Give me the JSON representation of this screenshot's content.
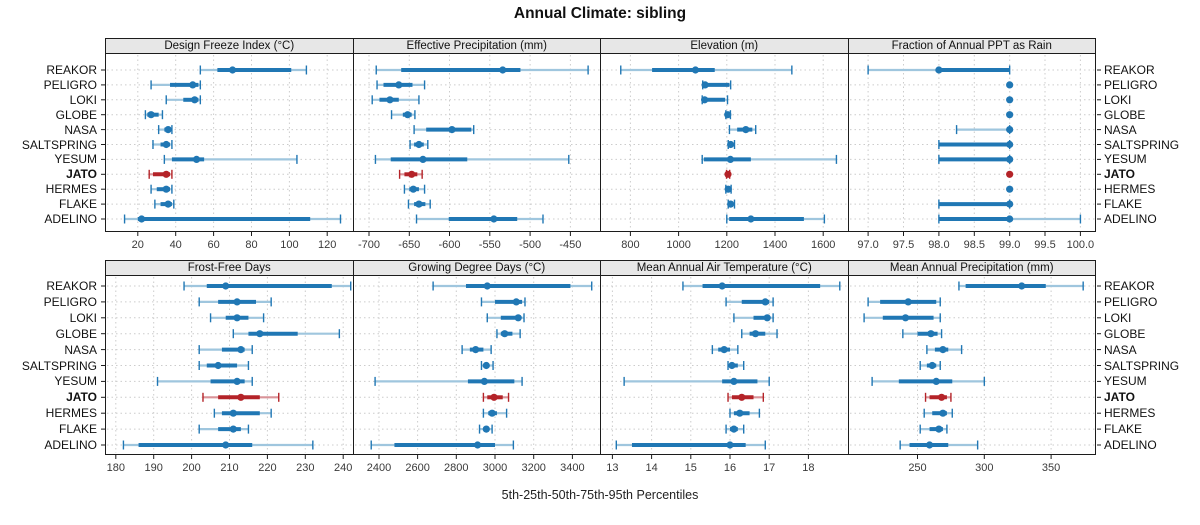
{
  "chart_data": {
    "type": "dotplot",
    "title": "Annual Climate: sibling",
    "caption": "5th-25th-50th-75th-95th Percentiles",
    "percentiles": [
      5,
      25,
      50,
      75,
      95
    ],
    "legend_position": "none",
    "grid": true,
    "sites": [
      "REAKOR",
      "PELIGRO",
      "LOKI",
      "GLOBE",
      "NASA",
      "SALTSPRING",
      "YESUM",
      "JATO",
      "HERMES",
      "FLAKE",
      "ADELINO"
    ],
    "highlight_site": "JATO",
    "colors": {
      "normal": "#2077b4",
      "normal_light": "#9fc6de",
      "highlight": "#b42328",
      "highlight_light": "#d99398",
      "grid": "#cccccc",
      "strip_bg": "#e7e7e7",
      "border": "#1c1c1c"
    },
    "panels": [
      {
        "title": "Design Freeze Index (°C)",
        "xlim": [
          3.2,
          133.6
        ],
        "ticks": [
          20,
          40,
          60,
          80,
          100,
          120
        ],
        "tick_labels": [
          "20",
          "40",
          "60",
          "80",
          "100",
          "120"
        ],
        "series": [
          [
            53,
            62,
            70,
            101,
            109
          ],
          [
            27,
            37,
            49,
            52,
            53
          ],
          [
            35,
            44,
            50,
            52,
            53
          ],
          [
            24,
            25,
            27,
            31,
            33
          ],
          [
            31,
            34,
            36,
            37,
            38
          ],
          [
            28,
            32,
            35,
            37,
            38
          ],
          [
            34,
            38,
            51,
            55,
            104
          ],
          [
            26,
            28,
            35,
            37,
            38
          ],
          [
            27,
            30,
            35,
            37,
            38
          ],
          [
            29,
            32,
            36,
            38,
            39
          ],
          [
            13,
            20,
            22,
            111,
            127
          ]
        ]
      },
      {
        "title": "Effective Precipitation (mm)",
        "xlim": [
          -718.6,
          -412
        ],
        "ticks": [
          -700,
          -650,
          -600,
          -550,
          -500,
          -450
        ],
        "tick_labels": [
          "-700",
          "-650",
          "-600",
          "-550",
          "-500",
          "-450"
        ],
        "series": [
          [
            -691,
            -660,
            -534,
            -512,
            -428
          ],
          [
            -690,
            -682,
            -663,
            -646,
            -631
          ],
          [
            -696,
            -687,
            -674,
            -663,
            -638
          ],
          [
            -672,
            -658,
            -652,
            -647,
            -643
          ],
          [
            -644,
            -629,
            -597,
            -573,
            -570
          ],
          [
            -649,
            -644,
            -638,
            -632,
            -627
          ],
          [
            -692,
            -673,
            -633,
            -578,
            -452
          ],
          [
            -662,
            -656,
            -647,
            -640,
            -634
          ],
          [
            -656,
            -650,
            -645,
            -638,
            -631
          ],
          [
            -651,
            -644,
            -638,
            -630,
            -624
          ],
          [
            -641,
            -601,
            -545,
            -516,
            -484
          ]
        ]
      },
      {
        "title": "Elevation (m)",
        "xlim": [
          678,
          1703
        ],
        "ticks": [
          800,
          1000,
          1200,
          1400,
          1600
        ],
        "tick_labels": [
          "800",
          "1000",
          "1200",
          "1400",
          "1600"
        ],
        "series": [
          [
            760,
            890,
            1070,
            1150,
            1470
          ],
          [
            1100,
            1105,
            1110,
            1211,
            1216
          ],
          [
            1098,
            1103,
            1108,
            1193,
            1203
          ],
          [
            1196,
            1200,
            1204,
            1210,
            1215
          ],
          [
            1211,
            1243,
            1279,
            1306,
            1320
          ],
          [
            1206,
            1211,
            1216,
            1226,
            1232
          ],
          [
            1098,
            1105,
            1215,
            1300,
            1655
          ],
          [
            1199,
            1202,
            1205,
            1209,
            1212
          ],
          [
            1196,
            1201,
            1206,
            1212,
            1218
          ],
          [
            1206,
            1211,
            1216,
            1226,
            1232
          ],
          [
            1200,
            1210,
            1300,
            1520,
            1605
          ]
        ]
      },
      {
        "title": "Fraction of Annual PPT as Rain",
        "xlim": [
          96.73,
          100.22
        ],
        "ticks": [
          97.0,
          97.5,
          98.0,
          98.5,
          99.0,
          99.5,
          100.0
        ],
        "tick_labels": [
          "97.0",
          "97.5",
          "98.0",
          "98.5",
          "99.0",
          "99.5",
          "100.0"
        ],
        "series": [
          [
            97,
            98,
            98,
            99,
            99
          ],
          [
            99,
            99,
            99,
            99,
            99
          ],
          [
            99,
            99,
            99,
            99,
            99
          ],
          [
            99,
            99,
            99,
            99,
            99
          ],
          [
            98.25,
            99,
            99,
            99,
            99
          ],
          [
            98,
            98,
            99,
            99,
            99
          ],
          [
            98,
            98,
            99,
            99,
            99
          ],
          [
            99,
            99,
            99,
            99,
            99
          ],
          [
            99,
            99,
            99,
            99,
            99
          ],
          [
            98,
            98,
            99,
            99,
            99
          ],
          [
            98,
            98,
            99,
            99,
            100
          ]
        ]
      },
      {
        "title": "Frost-Free Days",
        "xlim": [
          177.4,
          242.6
        ],
        "ticks": [
          180,
          190,
          200,
          210,
          220,
          230,
          240
        ],
        "tick_labels": [
          "180",
          "190",
          "200",
          "210",
          "220",
          "230",
          "240"
        ],
        "series": [
          [
            198,
            204,
            209,
            237,
            242
          ],
          [
            202,
            207,
            212,
            217,
            221
          ],
          [
            205,
            209,
            212,
            215,
            219
          ],
          [
            211,
            215,
            218,
            228,
            239
          ],
          [
            202,
            208,
            213,
            214,
            216
          ],
          [
            202,
            204,
            207,
            212,
            215
          ],
          [
            191,
            205,
            212,
            214,
            216
          ],
          [
            203,
            207,
            213,
            218,
            223
          ],
          [
            206,
            208,
            211,
            218,
            221
          ],
          [
            202,
            207,
            211,
            213,
            215
          ],
          [
            182,
            186,
            209,
            216,
            232
          ]
        ]
      },
      {
        "title": "Growing Degree Days (°C)",
        "xlim": [
          2271,
          3548
        ],
        "ticks": [
          2400,
          2600,
          2800,
          3000,
          3200,
          3400
        ],
        "tick_labels": [
          "2400",
          "2600",
          "2800",
          "3000",
          "3200",
          "3400"
        ],
        "series": [
          [
            2680,
            2850,
            2960,
            3390,
            3500
          ],
          [
            2930,
            3000,
            3110,
            3140,
            3155
          ],
          [
            2960,
            3030,
            3120,
            3135,
            3150
          ],
          [
            3010,
            3030,
            3050,
            3090,
            3130
          ],
          [
            2830,
            2870,
            2900,
            2940,
            2980
          ],
          [
            2930,
            2945,
            2955,
            2970,
            2990
          ],
          [
            2380,
            2860,
            2945,
            3100,
            3140
          ],
          [
            2940,
            2960,
            2995,
            3040,
            3070
          ],
          [
            2940,
            2965,
            2985,
            3010,
            3060
          ],
          [
            2920,
            2940,
            2955,
            2970,
            2985
          ],
          [
            2360,
            2480,
            2910,
            3000,
            3095
          ]
        ]
      },
      {
        "title": "Mean Annual Air Temperature (°C)",
        "xlim": [
          12.71,
          19.01
        ],
        "ticks": [
          13,
          14,
          15,
          16,
          17,
          18
        ],
        "tick_labels": [
          "13",
          "14",
          "15",
          "16",
          "17",
          "18"
        ],
        "series": [
          [
            14.8,
            15.3,
            15.8,
            18.3,
            18.8
          ],
          [
            15.9,
            16.3,
            16.9,
            17.0,
            17.1
          ],
          [
            16.1,
            16.6,
            16.95,
            17.0,
            17.1
          ],
          [
            16.3,
            16.5,
            16.65,
            16.9,
            17.2
          ],
          [
            15.55,
            15.7,
            15.85,
            16.0,
            16.2
          ],
          [
            15.95,
            16.0,
            16.05,
            16.2,
            16.35
          ],
          [
            13.3,
            15.8,
            16.1,
            16.7,
            17.0
          ],
          [
            15.95,
            16.05,
            16.3,
            16.6,
            16.85
          ],
          [
            16.0,
            16.1,
            16.25,
            16.5,
            16.75
          ],
          [
            15.9,
            16.0,
            16.1,
            16.2,
            16.35
          ],
          [
            13.1,
            13.5,
            16.0,
            16.4,
            16.9
          ]
        ]
      },
      {
        "title": "Mean Annual Precipitation (mm)",
        "xlim": [
          198.7,
          383.6
        ],
        "ticks": [
          250,
          300,
          350
        ],
        "tick_labels": [
          "250",
          "300",
          "350"
        ],
        "series": [
          [
            281,
            286,
            328,
            346,
            374
          ],
          [
            213,
            222,
            243,
            264,
            267
          ],
          [
            210,
            224,
            241,
            262,
            267
          ],
          [
            239,
            250,
            260,
            265,
            268
          ],
          [
            257,
            263,
            269,
            273,
            283
          ],
          [
            252,
            257,
            261,
            264,
            267
          ],
          [
            216,
            236,
            264,
            276,
            300
          ],
          [
            256,
            259,
            268,
            272,
            275
          ],
          [
            255,
            261,
            269,
            272,
            276
          ],
          [
            252,
            259,
            266,
            269,
            272
          ],
          [
            237,
            244,
            259,
            273,
            295
          ]
        ]
      }
    ]
  }
}
